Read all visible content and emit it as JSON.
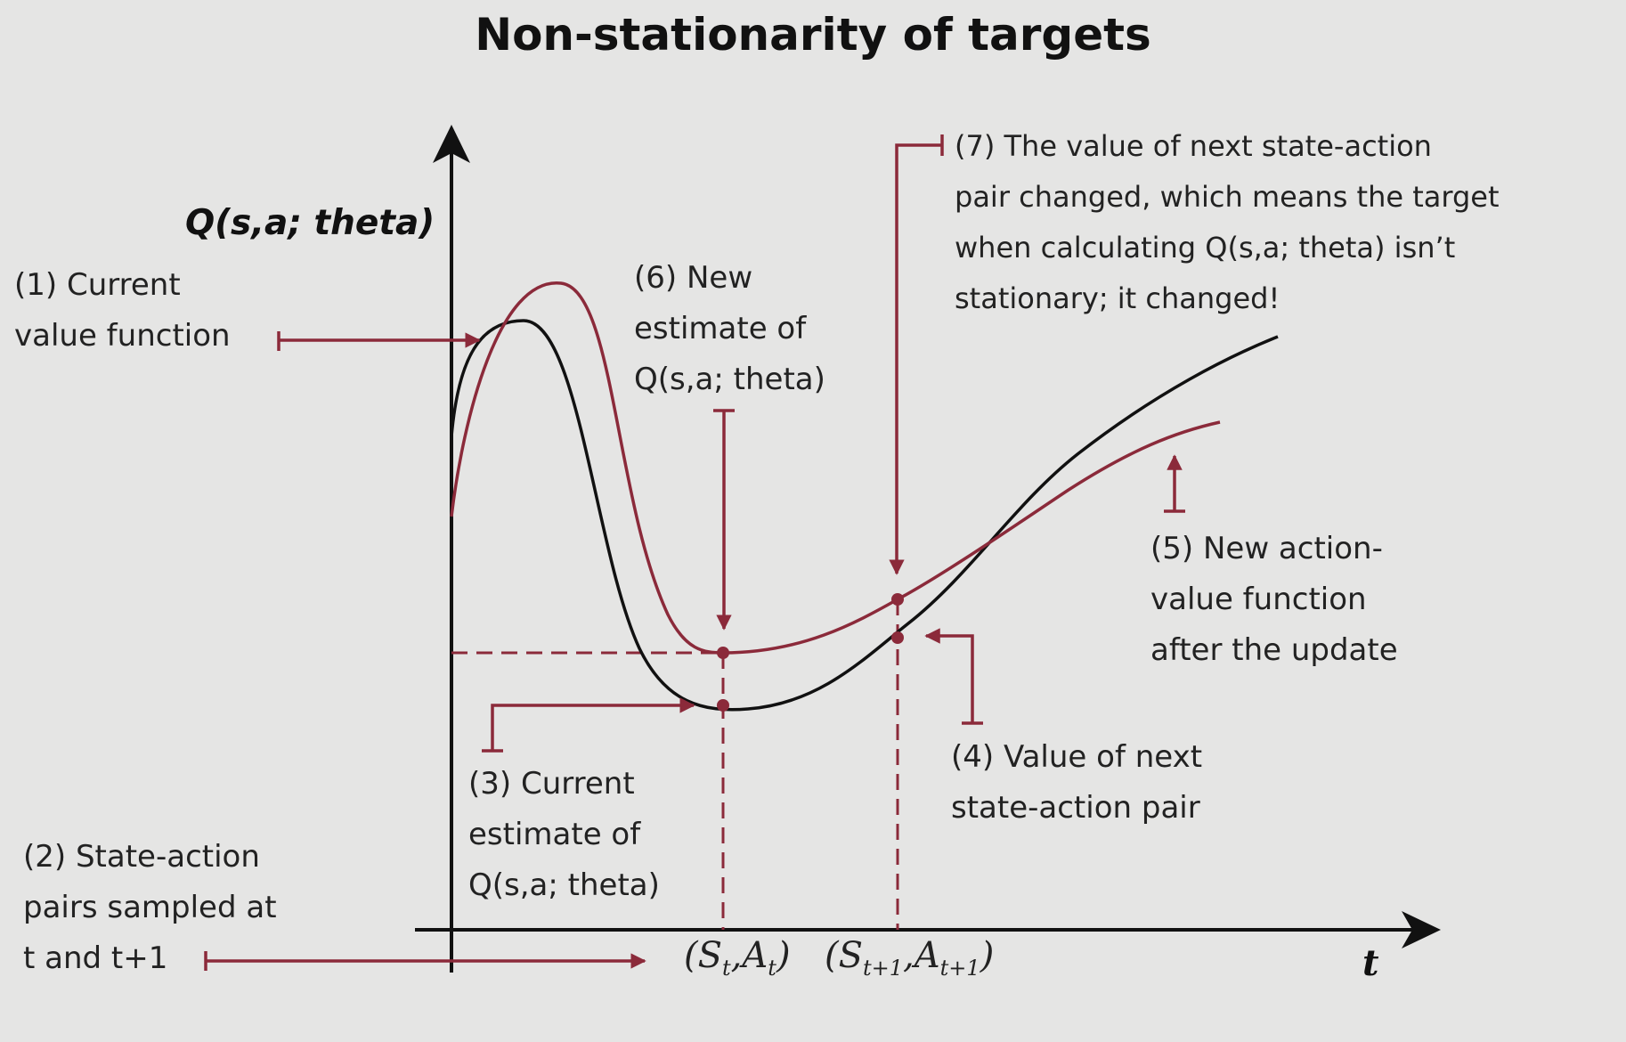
{
  "title": "Non-stationarity of targets",
  "axes": {
    "y_label": "Q(s,a; theta)",
    "x_label": "t"
  },
  "ticks": [
    {
      "base1": "(S",
      "sub1": "t",
      "sep": ",A",
      "sub2": "t",
      "close": ")"
    },
    {
      "base1": "(S",
      "sub1": "t+1",
      "sep": ",A",
      "sub2": "t+1",
      "close": ")"
    }
  ],
  "annotations": {
    "a1": [
      "(1) Current",
      "value function"
    ],
    "a2": [
      "(2) State-action",
      "pairs sampled at",
      "t and t+1"
    ],
    "a3": [
      "(3) Current",
      "estimate of",
      "Q(s,a; theta)"
    ],
    "a4": [
      "(4) Value of next",
      "state-action pair"
    ],
    "a5": [
      "(5) New action-",
      "value function",
      "after the update"
    ],
    "a6": [
      "(6) New",
      "estimate of",
      "Q(s,a; theta)"
    ],
    "a7": [
      "(7) The value of next state-action",
      "pair changed, which means the target",
      "when calculating Q(s,a; theta) isn’t",
      "stationary; it changed!"
    ]
  },
  "colors": {
    "accent": "#8b2a3a",
    "ink": "#111111",
    "background": "#e5e5e4"
  }
}
